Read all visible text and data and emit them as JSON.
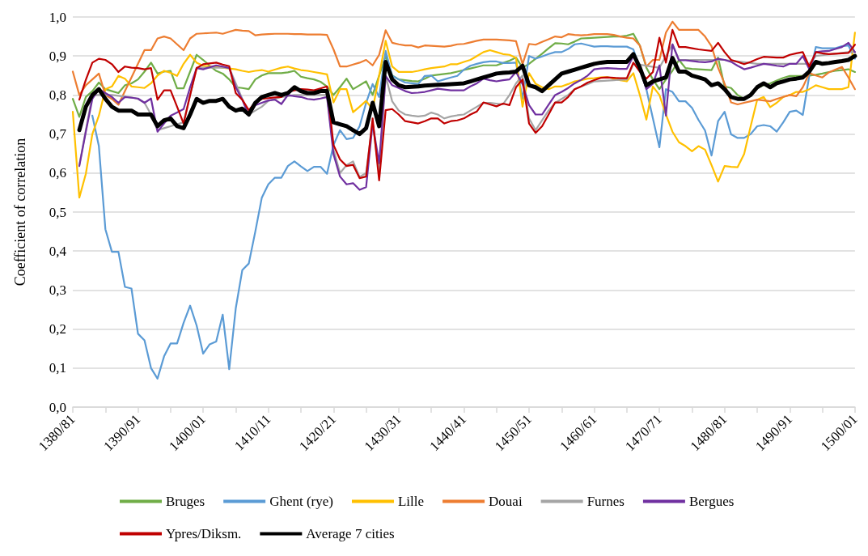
{
  "chart_data": {
    "type": "line",
    "ylabel": "Coefficient of correlation",
    "ylim": [
      0,
      1
    ],
    "categories": [
      "1380/81",
      null,
      null,
      null,
      null,
      null,
      null,
      null,
      null,
      null,
      "1390/91",
      null,
      null,
      null,
      null,
      null,
      null,
      null,
      null,
      null,
      "1400/01",
      null,
      null,
      null,
      null,
      null,
      null,
      null,
      null,
      null,
      "1410/11",
      null,
      null,
      null,
      null,
      null,
      null,
      null,
      null,
      null,
      "1420/21",
      null,
      null,
      null,
      null,
      null,
      null,
      null,
      null,
      null,
      "1430/31",
      null,
      null,
      null,
      null,
      null,
      null,
      null,
      null,
      null,
      "1440/41",
      null,
      null,
      null,
      null,
      null,
      null,
      null,
      null,
      null,
      "1450/51",
      null,
      null,
      null,
      null,
      null,
      null,
      null,
      null,
      null,
      "1460/61",
      null,
      null,
      null,
      null,
      null,
      null,
      null,
      null,
      null,
      "1470/71",
      null,
      null,
      null,
      null,
      null,
      null,
      null,
      null,
      null,
      "1480/81",
      null,
      null,
      null,
      null,
      null,
      null,
      null,
      null,
      null,
      "1490/91",
      null,
      null,
      null,
      null,
      null,
      null,
      null,
      null,
      null,
      "1500/01"
    ],
    "yticks": [
      {
        "value": 0,
        "label": "0,0"
      },
      {
        "value": 0.1,
        "label": "0,1"
      },
      {
        "value": 0.2,
        "label": "0,2"
      },
      {
        "value": 0.3,
        "label": "0,3"
      },
      {
        "value": 0.4,
        "label": "0,4"
      },
      {
        "value": 0.5,
        "label": "0,5"
      },
      {
        "value": 0.6,
        "label": "0,6"
      },
      {
        "value": 0.7,
        "label": "0,7"
      },
      {
        "value": 0.8,
        "label": "0,8"
      },
      {
        "value": 0.9,
        "label": "0,9"
      },
      {
        "value": 1,
        "label": "1,0"
      }
    ],
    "grid": "y",
    "legend": "bottom",
    "marker": "none",
    "line_style": "solid",
    "series": [
      {
        "name": "Bruges",
        "color": "#70ad47",
        "values": [
          0.79,
          0.744,
          0.795,
          0.81,
          0.832,
          0.815,
          0.81,
          0.805,
          0.825,
          0.83,
          0.84,
          0.86,
          0.883,
          0.855,
          0.86,
          0.862,
          0.817,
          0.817,
          0.86,
          0.903,
          0.89,
          0.875,
          0.862,
          0.855,
          0.84,
          0.82,
          0.818,
          0.815,
          0.84,
          0.85,
          0.856,
          0.856,
          0.856,
          0.858,
          0.862,
          0.847,
          0.843,
          0.84,
          0.834,
          0.822,
          0.8,
          0.82,
          0.842,
          0.815,
          0.825,
          0.835,
          0.8,
          0.85,
          0.9,
          0.85,
          0.84,
          0.838,
          0.836,
          0.835,
          0.842,
          0.85,
          0.852,
          0.854,
          0.856,
          0.86,
          0.864,
          0.868,
          0.872,
          0.876,
          0.876,
          0.876,
          0.882,
          0.888,
          0.896,
          0.87,
          0.88,
          0.893,
          0.906,
          0.92,
          0.933,
          0.932,
          0.93,
          0.937,
          0.945,
          0.946,
          0.947,
          0.948,
          0.949,
          0.95,
          0.95,
          0.952,
          0.957,
          0.927,
          0.87,
          0.84,
          0.815,
          0.84,
          0.862,
          0.89,
          0.869,
          0.867,
          0.866,
          0.865,
          0.864,
          0.896,
          0.822,
          0.818,
          0.8,
          0.79,
          0.8,
          0.818,
          0.825,
          0.83,
          0.837,
          0.844,
          0.849,
          0.849,
          0.849,
          0.85,
          0.852,
          0.855,
          0.859,
          0.862,
          0.864,
          0.866,
          0.859
        ]
      },
      {
        "name": "Ghent (rye)",
        "color": "#5b9bd5",
        "values": [
          null,
          null,
          null,
          0.747,
          0.669,
          0.456,
          0.398,
          0.398,
          0.308,
          0.304,
          0.188,
          0.171,
          0.1,
          0.073,
          0.13,
          0.163,
          0.163,
          0.216,
          0.26,
          0.209,
          0.137,
          0.161,
          0.168,
          0.237,
          0.097,
          0.253,
          0.351,
          0.368,
          0.45,
          0.537,
          0.571,
          0.588,
          0.588,
          0.618,
          0.63,
          0.617,
          0.605,
          0.616,
          0.616,
          0.598,
          0.672,
          0.71,
          0.687,
          0.69,
          0.72,
          0.78,
          0.828,
          0.795,
          0.913,
          0.849,
          0.84,
          0.832,
          0.83,
          0.828,
          0.849,
          0.85,
          0.835,
          0.84,
          0.845,
          0.849,
          0.865,
          0.875,
          0.88,
          0.884,
          0.886,
          0.886,
          0.882,
          0.882,
          0.883,
          0.79,
          0.9,
          0.893,
          0.899,
          0.905,
          0.91,
          0.91,
          0.918,
          0.93,
          0.932,
          0.928,
          0.924,
          0.925,
          0.925,
          0.924,
          0.924,
          0.924,
          0.917,
          0.869,
          0.815,
          0.74,
          0.666,
          0.815,
          0.808,
          0.784,
          0.784,
          0.767,
          0.736,
          0.709,
          0.645,
          0.733,
          0.757,
          0.699,
          0.69,
          0.69,
          0.7,
          0.72,
          0.723,
          0.72,
          0.706,
          0.73,
          0.757,
          0.76,
          0.749,
          0.85,
          0.923,
          0.92,
          0.92,
          0.92,
          0.925,
          0.927,
          0.893
        ]
      },
      {
        "name": "Lille",
        "color": "#ffc000",
        "values": [
          0.757,
          0.537,
          0.598,
          0.7,
          0.747,
          0.815,
          0.822,
          0.849,
          0.842,
          0.822,
          0.82,
          0.818,
          0.83,
          0.85,
          0.862,
          0.857,
          0.849,
          0.88,
          0.903,
          0.883,
          0.875,
          0.873,
          0.873,
          0.87,
          0.868,
          0.866,
          0.862,
          0.859,
          0.862,
          0.864,
          0.86,
          0.865,
          0.87,
          0.873,
          0.868,
          0.864,
          0.862,
          0.859,
          0.856,
          0.853,
          0.781,
          0.815,
          0.815,
          0.756,
          0.77,
          0.785,
          0.763,
          0.85,
          0.939,
          0.873,
          0.859,
          0.859,
          0.859,
          0.862,
          0.866,
          0.869,
          0.871,
          0.873,
          0.879,
          0.879,
          0.885,
          0.89,
          0.9,
          0.91,
          0.915,
          0.91,
          0.905,
          0.903,
          0.895,
          0.77,
          0.856,
          0.829,
          0.82,
          0.815,
          0.822,
          0.822,
          0.828,
          0.835,
          0.838,
          0.842,
          0.843,
          0.845,
          0.846,
          0.842,
          0.838,
          0.835,
          0.856,
          0.8,
          0.737,
          0.822,
          0.8,
          0.75,
          0.706,
          0.679,
          0.669,
          0.656,
          0.669,
          0.66,
          0.62,
          0.578,
          0.618,
          0.616,
          0.615,
          0.649,
          0.72,
          0.788,
          0.795,
          0.769,
          0.78,
          0.795,
          0.8,
          0.808,
          0.808,
          0.815,
          0.825,
          0.82,
          0.815,
          0.815,
          0.815,
          0.82,
          0.96
        ]
      },
      {
        "name": "Douai",
        "color": "#ed7d31",
        "values": [
          0.86,
          0.8,
          0.825,
          0.84,
          0.855,
          0.8,
          0.79,
          0.775,
          0.81,
          0.845,
          0.88,
          0.915,
          0.915,
          0.945,
          0.95,
          0.945,
          0.93,
          0.915,
          0.945,
          0.957,
          0.958,
          0.959,
          0.96,
          0.957,
          0.962,
          0.967,
          0.965,
          0.964,
          0.953,
          0.955,
          0.956,
          0.957,
          0.957,
          0.957,
          0.956,
          0.956,
          0.955,
          0.955,
          0.955,
          0.954,
          0.917,
          0.873,
          0.873,
          0.878,
          0.883,
          0.89,
          0.876,
          0.903,
          0.966,
          0.934,
          0.93,
          0.927,
          0.927,
          0.922,
          0.927,
          0.926,
          0.925,
          0.924,
          0.926,
          0.93,
          0.931,
          0.935,
          0.939,
          0.942,
          0.942,
          0.942,
          0.941,
          0.94,
          0.938,
          0.879,
          0.931,
          0.929,
          0.936,
          0.943,
          0.95,
          0.948,
          0.956,
          0.954,
          0.953,
          0.954,
          0.956,
          0.956,
          0.956,
          0.954,
          0.95,
          0.947,
          0.945,
          0.927,
          0.873,
          0.89,
          0.89,
          0.96,
          0.988,
          0.967,
          0.967,
          0.967,
          0.967,
          0.95,
          0.925,
          0.87,
          0.829,
          0.781,
          0.776,
          0.78,
          0.784,
          0.788,
          0.786,
          0.784,
          0.79,
          0.795,
          0.8,
          0.797,
          0.82,
          0.856,
          0.85,
          0.845,
          0.858,
          0.865,
          0.872,
          0.845,
          0.815
        ]
      },
      {
        "name": "Furnes",
        "color": "#a5a5a5",
        "values": [
          null,
          0.62,
          0.71,
          0.8,
          0.8,
          0.8,
          0.8,
          0.798,
          0.796,
          0.794,
          0.79,
          0.78,
          0.75,
          0.71,
          0.715,
          0.72,
          0.725,
          0.73,
          0.8,
          0.87,
          0.87,
          0.87,
          0.87,
          0.87,
          0.87,
          0.83,
          0.79,
          0.75,
          0.76,
          0.77,
          0.785,
          0.79,
          0.795,
          0.797,
          0.8,
          0.8,
          0.8,
          0.8,
          0.8,
          0.8,
          0.66,
          0.6,
          0.62,
          0.63,
          0.59,
          0.6,
          0.73,
          0.6,
          0.849,
          0.784,
          0.76,
          0.75,
          0.747,
          0.745,
          0.747,
          0.755,
          0.75,
          0.74,
          0.745,
          0.748,
          0.75,
          0.76,
          0.77,
          0.78,
          0.78,
          0.778,
          0.776,
          0.8,
          0.83,
          0.85,
          0.74,
          0.71,
          0.735,
          0.76,
          0.78,
          0.79,
          0.8,
          0.815,
          0.822,
          0.828,
          0.835,
          0.836,
          0.837,
          0.838,
          0.839,
          0.84,
          0.88,
          0.878,
          0.875,
          0.872,
          0.87,
          0.9,
          0.93,
          0.89,
          0.89,
          0.89,
          0.89,
          0.89,
          0.89,
          0.89,
          0.89,
          0.888,
          0.886,
          0.884,
          0.882,
          0.88,
          0.88,
          0.88,
          0.88,
          0.88,
          0.88,
          0.88,
          0.88,
          0.88,
          0.9,
          0.902,
          0.904,
          0.906,
          0.908,
          0.91,
          0.91
        ]
      },
      {
        "name": "Bergues",
        "color": "#7030a0",
        "values": [
          null,
          0.618,
          0.706,
          0.79,
          0.815,
          0.805,
          0.795,
          0.78,
          0.795,
          0.793,
          0.791,
          0.78,
          0.791,
          0.706,
          0.727,
          0.747,
          0.755,
          0.764,
          0.82,
          0.869,
          0.866,
          0.871,
          0.876,
          0.873,
          0.869,
          0.82,
          0.788,
          0.747,
          0.774,
          0.78,
          0.786,
          0.788,
          0.777,
          0.8,
          0.797,
          0.795,
          0.79,
          0.788,
          0.791,
          0.795,
          0.648,
          0.591,
          0.571,
          0.574,
          0.557,
          0.564,
          0.727,
          0.625,
          0.849,
          0.825,
          0.818,
          0.81,
          0.805,
          0.806,
          0.808,
          0.812,
          0.816,
          0.814,
          0.812,
          0.812,
          0.812,
          0.822,
          0.83,
          0.842,
          0.838,
          0.835,
          0.838,
          0.84,
          0.859,
          0.828,
          0.774,
          0.75,
          0.75,
          0.775,
          0.8,
          0.808,
          0.818,
          0.83,
          0.839,
          0.85,
          0.866,
          0.868,
          0.869,
          0.868,
          0.867,
          0.867,
          0.9,
          0.867,
          0.815,
          0.829,
          0.876,
          0.747,
          0.93,
          0.889,
          0.889,
          0.887,
          0.885,
          0.884,
          0.886,
          0.893,
          0.89,
          0.885,
          0.875,
          0.866,
          0.87,
          0.875,
          0.88,
          0.878,
          0.875,
          0.873,
          0.88,
          0.88,
          0.9,
          0.866,
          0.91,
          0.912,
          0.913,
          0.918,
          0.923,
          0.934,
          0.91
        ]
      },
      {
        "name": "Ypres/Diksm.",
        "color": "#c00000",
        "values": [
          null,
          0.788,
          0.839,
          0.883,
          0.893,
          0.89,
          0.879,
          0.859,
          0.873,
          0.87,
          0.869,
          0.866,
          0.869,
          0.788,
          0.812,
          0.812,
          0.77,
          0.727,
          0.8,
          0.869,
          0.879,
          0.881,
          0.883,
          0.878,
          0.874,
          0.805,
          0.788,
          0.761,
          0.781,
          0.79,
          0.792,
          0.794,
          0.795,
          0.808,
          0.812,
          0.815,
          0.814,
          0.812,
          0.817,
          0.822,
          0.672,
          0.635,
          0.618,
          0.621,
          0.587,
          0.591,
          0.74,
          0.581,
          0.761,
          0.764,
          0.75,
          0.733,
          0.73,
          0.727,
          0.733,
          0.74,
          0.74,
          0.727,
          0.733,
          0.735,
          0.74,
          0.75,
          0.758,
          0.781,
          0.776,
          0.771,
          0.778,
          0.774,
          0.82,
          0.84,
          0.727,
          0.703,
          0.72,
          0.75,
          0.781,
          0.781,
          0.795,
          0.815,
          0.822,
          0.832,
          0.838,
          0.844,
          0.845,
          0.844,
          0.843,
          0.843,
          0.883,
          0.86,
          0.842,
          0.859,
          0.947,
          0.883,
          0.967,
          0.923,
          0.923,
          0.92,
          0.917,
          0.915,
          0.913,
          0.934,
          0.91,
          0.89,
          0.885,
          0.879,
          0.885,
          0.892,
          0.898,
          0.897,
          0.896,
          0.896,
          0.903,
          0.907,
          0.91,
          0.873,
          0.91,
          0.907,
          0.905,
          0.906,
          0.907,
          0.908,
          0.929
        ]
      },
      {
        "name": "Average 7 cities",
        "color": "#000000",
        "values": [
          null,
          0.71,
          0.77,
          0.8,
          0.815,
          0.79,
          0.77,
          0.76,
          0.76,
          0.76,
          0.75,
          0.75,
          0.75,
          0.72,
          0.735,
          0.74,
          0.72,
          0.715,
          0.75,
          0.79,
          0.78,
          0.785,
          0.785,
          0.79,
          0.77,
          0.76,
          0.765,
          0.75,
          0.78,
          0.795,
          0.8,
          0.805,
          0.8,
          0.805,
          0.82,
          0.81,
          0.805,
          0.805,
          0.81,
          0.81,
          0.73,
          0.725,
          0.72,
          0.71,
          0.7,
          0.715,
          0.78,
          0.72,
          0.885,
          0.84,
          0.825,
          0.82,
          0.821,
          0.822,
          0.824,
          0.825,
          0.826,
          0.827,
          0.828,
          0.829,
          0.83,
          0.835,
          0.84,
          0.845,
          0.85,
          0.855,
          0.857,
          0.858,
          0.86,
          0.875,
          0.825,
          0.82,
          0.81,
          0.825,
          0.84,
          0.855,
          0.86,
          0.865,
          0.87,
          0.875,
          0.88,
          0.883,
          0.885,
          0.885,
          0.885,
          0.885,
          0.905,
          0.87,
          0.825,
          0.835,
          0.84,
          0.845,
          0.895,
          0.86,
          0.86,
          0.85,
          0.845,
          0.84,
          0.825,
          0.83,
          0.815,
          0.795,
          0.79,
          0.79,
          0.8,
          0.82,
          0.83,
          0.82,
          0.83,
          0.835,
          0.84,
          0.842,
          0.845,
          0.86,
          0.885,
          0.88,
          0.882,
          0.885,
          0.887,
          0.89,
          0.9
        ]
      }
    ]
  }
}
